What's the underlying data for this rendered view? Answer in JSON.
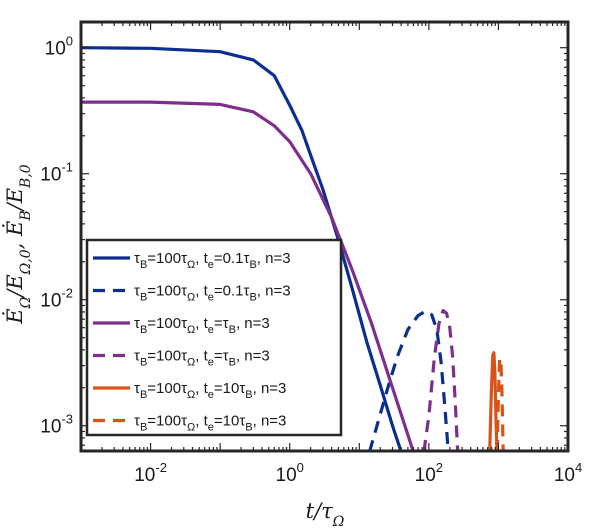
{
  "chart_data": {
    "type": "line",
    "title": "",
    "xlabel": "t/τ_Ω",
    "ylabel": "Ė_Ω/E_Ω,0, Ė_B/E_B,0",
    "xscale": "log",
    "yscale": "log",
    "xlim": [
      0.001,
      10000
    ],
    "ylim": [
      0.00063,
      1.6
    ],
    "x_ticks": [
      {
        "value": 0.01,
        "base": "10",
        "exp": "-2"
      },
      {
        "value": 1,
        "base": "10",
        "exp": "0"
      },
      {
        "value": 100,
        "base": "10",
        "exp": "2"
      },
      {
        "value": 10000,
        "base": "10",
        "exp": "4"
      }
    ],
    "y_ticks": [
      {
        "value": 0.001,
        "base": "10",
        "exp": "-3"
      },
      {
        "value": 0.01,
        "base": "10",
        "exp": "-2"
      },
      {
        "value": 0.1,
        "base": "10",
        "exp": "-1"
      },
      {
        "value": 1,
        "base": "10",
        "exp": "0"
      }
    ],
    "grid": false,
    "legend_position": "bottom-left",
    "series": [
      {
        "name": "τ_B=100τ_Ω, t_e=0.1τ_B, n=3",
        "color": "#0b2e8f",
        "dash": "solid",
        "x": [
          0.001,
          0.01,
          0.1,
          0.3,
          0.6,
          1,
          1.5,
          2,
          3,
          5,
          8,
          13,
          20,
          30,
          40
        ],
        "y": [
          1.0,
          0.99,
          0.93,
          0.8,
          0.6,
          0.35,
          0.22,
          0.14,
          0.075,
          0.03,
          0.012,
          0.0045,
          0.0021,
          0.001,
          0.00062
        ]
      },
      {
        "name": "τ_B=100τ_Ω, t_e=0.1τ_B, n=3",
        "color": "#0b2e8f",
        "dash": "dashed",
        "x": [
          14,
          18,
          25,
          35,
          50,
          70,
          90,
          110,
          130,
          150,
          170,
          190
        ],
        "y": [
          0.00062,
          0.001,
          0.0019,
          0.0035,
          0.0058,
          0.0075,
          0.0081,
          0.0076,
          0.0058,
          0.0032,
          0.0014,
          0.00062
        ]
      },
      {
        "name": "τ_B=100τ_Ω, t_e=τ_B, n=3",
        "color": "#7e2f8e",
        "dash": "solid",
        "x": [
          0.001,
          0.01,
          0.1,
          0.3,
          0.6,
          1,
          2,
          4,
          8,
          15,
          30,
          60
        ],
        "y": [
          0.37,
          0.37,
          0.355,
          0.31,
          0.24,
          0.18,
          0.1,
          0.045,
          0.017,
          0.0065,
          0.002,
          0.00062
        ]
      },
      {
        "name": "τ_B=100τ_Ω, t_e=τ_B, n=3",
        "color": "#7e2f8e",
        "dash": "dashed",
        "x": [
          85,
          100,
          120,
          140,
          160,
          180,
          200,
          220,
          240,
          260
        ],
        "y": [
          0.00062,
          0.0012,
          0.0035,
          0.0065,
          0.0082,
          0.0078,
          0.006,
          0.0035,
          0.0015,
          0.00062
        ]
      },
      {
        "name": "τ_B=100τ_Ω, t_e=10τ_B, n=3",
        "color": "#d95319",
        "dash": "solid",
        "x": [
          750,
          790,
          830,
          860,
          890,
          920,
          950
        ],
        "y": [
          0.00062,
          0.0018,
          0.0036,
          0.0038,
          0.0026,
          0.0012,
          0.00062
        ]
      },
      {
        "name": "τ_B=100τ_Ω, t_e=10τ_B, n=3",
        "color": "#d95319",
        "dash": "dashed",
        "x": [
          960,
          1000,
          1040,
          1080,
          1120,
          1170
        ],
        "y": [
          0.00062,
          0.0017,
          0.0034,
          0.0034,
          0.0019,
          0.00062
        ]
      }
    ],
    "legend_entries": [
      {
        "tau_main": "τ",
        "tau_sub": "B",
        "eq1": "=100",
        "tau2_main": "τ",
        "tau2_sub": "Ω",
        "te_main": ", t",
        "te_sub": "e",
        "te_val": "=0.1",
        "te_tau": "τ",
        "te_tau_sub": "B",
        "n": ", n=3"
      },
      {
        "tau_main": "τ",
        "tau_sub": "B",
        "eq1": "=100",
        "tau2_main": "τ",
        "tau2_sub": "Ω",
        "te_main": ", t",
        "te_sub": "e",
        "te_val": "=0.1",
        "te_tau": "τ",
        "te_tau_sub": "B",
        "n": ", n=3"
      },
      {
        "tau_main": "τ",
        "tau_sub": "B",
        "eq1": "=100",
        "tau2_main": "τ",
        "tau2_sub": "Ω",
        "te_main": ", t",
        "te_sub": "e",
        "te_val": "=",
        "te_tau": "τ",
        "te_tau_sub": "B",
        "n": ", n=3"
      },
      {
        "tau_main": "τ",
        "tau_sub": "B",
        "eq1": "=100",
        "tau2_main": "τ",
        "tau2_sub": "Ω",
        "te_main": ", t",
        "te_sub": "e",
        "te_val": "=",
        "te_tau": "τ",
        "te_tau_sub": "B",
        "n": ", n=3"
      },
      {
        "tau_main": "τ",
        "tau_sub": "B",
        "eq1": "=100",
        "tau2_main": "τ",
        "tau2_sub": "Ω",
        "te_main": ", t",
        "te_sub": "e",
        "te_val": "=10",
        "te_tau": "τ",
        "te_tau_sub": "B",
        "n": ", n=3"
      },
      {
        "tau_main": "τ",
        "tau_sub": "B",
        "eq1": "=100",
        "tau2_main": "τ",
        "tau2_sub": "Ω",
        "te_main": ", t",
        "te_sub": "e",
        "te_val": "=10",
        "te_tau": "τ",
        "te_tau_sub": "B",
        "n": ", n=3"
      }
    ]
  }
}
